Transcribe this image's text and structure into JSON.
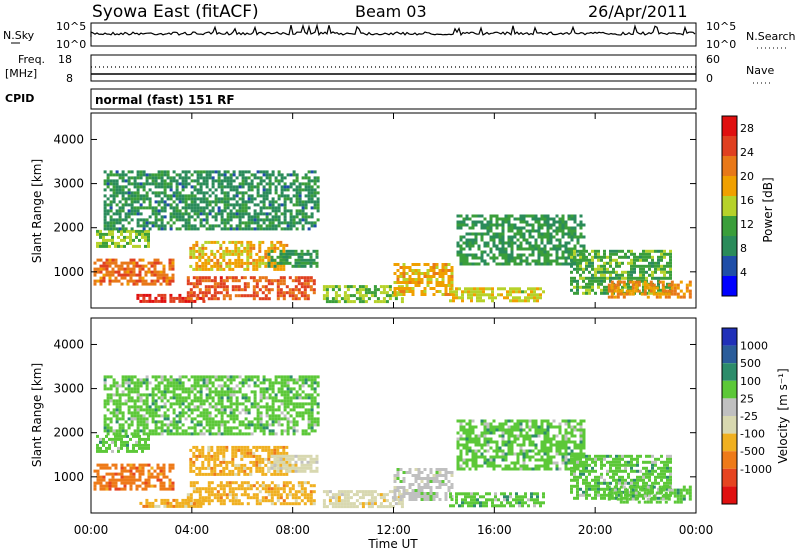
{
  "header": {
    "title": "Syowa East (fitACF)",
    "beam": "Beam 03",
    "date": "26/Apr/2011"
  },
  "noise_panel": {
    "left_label": "N.Sky",
    "right_label": "N.Search",
    "left_ticks": [
      "10^5",
      "10^0"
    ],
    "right_ticks": [
      "10^5",
      "10^0"
    ]
  },
  "freq_panel": {
    "left_label_1": "Freq.",
    "left_label_2": "[MHz]",
    "right_label": "Nave",
    "left_ticks": [
      "18",
      "8"
    ],
    "right_ticks": [
      "60",
      "0"
    ]
  },
  "cpid": {
    "label": "CPID",
    "text": "normal (fast) 151 RF"
  },
  "colors": {
    "power_scale": [
      "#0000ff",
      "#1f4ea8",
      "#2a8b5a",
      "#3a9e3a",
      "#b6d22a",
      "#f0a000",
      "#e87818",
      "#e04020",
      "#e01010"
    ],
    "velocity_scale": [
      "#2030b8",
      "#2a5c9a",
      "#2c8c6a",
      "#5cc838",
      "#c0c0c0",
      "#d8d8b0",
      "#f0b020",
      "#ee7a18",
      "#e64420",
      "#e01010"
    ]
  },
  "chart_data": [
    {
      "type": "heatmap",
      "title": "Power",
      "xlabel": "Time UT",
      "ylabel": "Slant Range [km]",
      "x_ticks": [
        "00:00",
        "04:00",
        "08:00",
        "12:00",
        "16:00",
        "20:00",
        "00:00"
      ],
      "xlim_hours": [
        0,
        24
      ],
      "y_ticks": [
        "1000",
        "2000",
        "3000",
        "4000"
      ],
      "ylim_km": [
        180,
        4600
      ],
      "colorbar_label": "Power [dB]",
      "colorbar_ticks": [
        "4",
        "8",
        "12",
        "16",
        "20",
        "24",
        "28"
      ],
      "colorbar_range": [
        0,
        30
      ],
      "regions": [
        {
          "t0": 0.1,
          "t1": 3.2,
          "r0": 700,
          "r1": 1300,
          "value": 22
        },
        {
          "t0": 0.2,
          "t1": 2.3,
          "r0": 1550,
          "r1": 1950,
          "value": 14
        },
        {
          "t0": 1.8,
          "t1": 4.5,
          "r0": 320,
          "r1": 500,
          "value": 26
        },
        {
          "t0": 3.8,
          "t1": 8.8,
          "r0": 420,
          "r1": 900,
          "value": 24
        },
        {
          "t0": 3.9,
          "t1": 7.8,
          "r0": 1050,
          "r1": 1700,
          "value": 18
        },
        {
          "t0": 7.0,
          "t1": 9.0,
          "r0": 1100,
          "r1": 1500,
          "value": 10
        },
        {
          "t0": 9.2,
          "t1": 12.3,
          "r0": 300,
          "r1": 700,
          "value": 14
        },
        {
          "t0": 12.0,
          "t1": 14.3,
          "r0": 500,
          "r1": 1200,
          "value": 18
        },
        {
          "t0": 14.2,
          "t1": 18.0,
          "r0": 350,
          "r1": 650,
          "value": 16
        },
        {
          "t0": 14.5,
          "t1": 19.5,
          "r0": 1200,
          "r1": 2300,
          "value": 10
        },
        {
          "t0": 19.0,
          "t1": 23.0,
          "r0": 500,
          "r1": 1500,
          "value": 12
        },
        {
          "t0": 20.5,
          "t1": 23.8,
          "r0": 450,
          "r1": 800,
          "value": 20
        },
        {
          "t0": 0.5,
          "t1": 9.0,
          "r0": 2000,
          "r1": 3300,
          "value": 9
        }
      ]
    },
    {
      "type": "heatmap",
      "title": "Velocity",
      "xlabel": "Time UT",
      "ylabel": "Slant Range [km]",
      "x_ticks": [
        "00:00",
        "04:00",
        "08:00",
        "12:00",
        "16:00",
        "20:00",
        "00:00"
      ],
      "xlim_hours": [
        0,
        24
      ],
      "y_ticks": [
        "1000",
        "2000",
        "3000",
        "4000"
      ],
      "ylim_km": [
        180,
        4600
      ],
      "colorbar_label_main": "Velocity",
      "colorbar_label_unit": "[m s⁻¹]",
      "colorbar_ticks": [
        "1000",
        "500",
        "100",
        "25",
        "-25",
        "-100",
        "-500",
        "-1000"
      ],
      "regions": [
        {
          "t0": 0.1,
          "t1": 3.2,
          "r0": 700,
          "r1": 1300,
          "value": -150
        },
        {
          "t0": 0.2,
          "t1": 2.3,
          "r0": 1550,
          "r1": 1950,
          "value": 200
        },
        {
          "t0": 1.8,
          "t1": 4.5,
          "r0": 320,
          "r1": 500,
          "value": -60
        },
        {
          "t0": 3.8,
          "t1": 8.8,
          "r0": 420,
          "r1": 900,
          "value": -60
        },
        {
          "t0": 3.9,
          "t1": 7.8,
          "r0": 1050,
          "r1": 1700,
          "value": -80
        },
        {
          "t0": 7.0,
          "t1": 9.0,
          "r0": 1100,
          "r1": 1500,
          "value": 0
        },
        {
          "t0": 9.2,
          "t1": 12.3,
          "r0": 300,
          "r1": 700,
          "value": -10
        },
        {
          "t0": 12.0,
          "t1": 14.3,
          "r0": 500,
          "r1": 1200,
          "value": 60
        },
        {
          "t0": 14.2,
          "t1": 18.0,
          "r0": 350,
          "r1": 650,
          "value": 150
        },
        {
          "t0": 14.5,
          "t1": 19.5,
          "r0": 1200,
          "r1": 2300,
          "value": 300
        },
        {
          "t0": 19.0,
          "t1": 23.0,
          "r0": 500,
          "r1": 1500,
          "value": 200
        },
        {
          "t0": 20.5,
          "t1": 23.8,
          "r0": 450,
          "r1": 800,
          "value": 300
        },
        {
          "t0": 0.5,
          "t1": 9.0,
          "r0": 2000,
          "r1": 3300,
          "value": 250
        }
      ]
    }
  ]
}
